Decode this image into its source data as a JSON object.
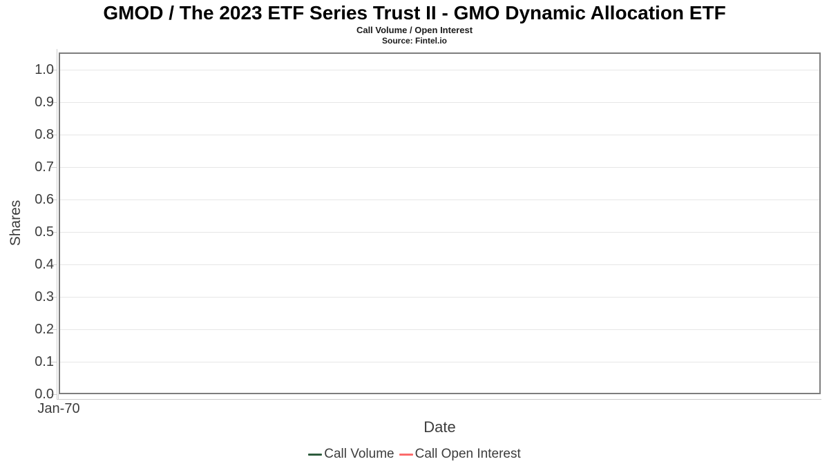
{
  "chart_data": {
    "type": "line",
    "title": "GMOD / The 2023 ETF Series Trust II - GMO Dynamic Allocation ETF",
    "subtitle": "Call Volume / Open Interest",
    "source": "Source: Fintel.io",
    "xlabel": "Date",
    "ylabel": "Shares",
    "x_ticks": [
      "Jan-70"
    ],
    "y_ticks": [
      "0.0",
      "0.1",
      "0.2",
      "0.3",
      "0.4",
      "0.5",
      "0.6",
      "0.7",
      "0.8",
      "0.9",
      "1.0"
    ],
    "ylim": [
      0,
      1.05
    ],
    "grid": true,
    "legend_position": "bottom",
    "series": [
      {
        "name": "Call Volume",
        "color": "#2d5c3d",
        "x": [],
        "values": []
      },
      {
        "name": "Call Open Interest",
        "color": "#fb6b6b",
        "x": [],
        "values": []
      }
    ]
  }
}
